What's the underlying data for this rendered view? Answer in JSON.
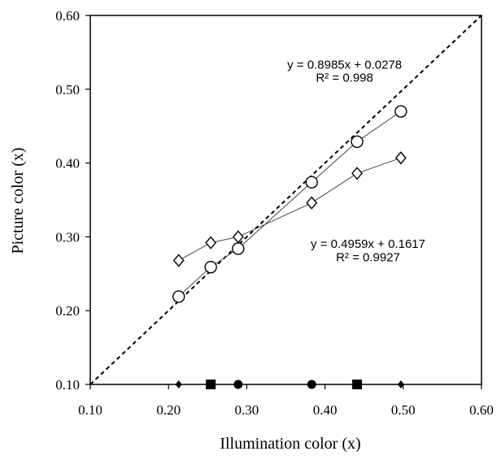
{
  "chart_data": {
    "type": "scatter",
    "title": "",
    "xlabel": "Illumination color (x)",
    "ylabel": "Picture color (x)",
    "xlim": [
      0.1,
      0.6
    ],
    "ylim": [
      0.1,
      0.6
    ],
    "x_ticks": [
      "0.10",
      "0.20",
      "0.30",
      "0.40",
      "0.50",
      "0.60"
    ],
    "y_ticks": [
      "0.10",
      "0.20",
      "0.30",
      "0.40",
      "0.50",
      "0.60"
    ],
    "grid": false,
    "legend": "none",
    "series": [
      {
        "marker": "circle-open",
        "color": "#000000",
        "x": [
          0.213,
          0.254,
          0.289,
          0.383,
          0.441,
          0.497
        ],
        "y": [
          0.219,
          0.259,
          0.284,
          0.374,
          0.429,
          0.47
        ],
        "trendline": {
          "slope": 0.8985,
          "intercept": 0.0278
        }
      },
      {
        "marker": "diamond-open",
        "color": "#000000",
        "x": [
          0.213,
          0.254,
          0.289,
          0.383,
          0.441,
          0.497
        ],
        "y": [
          0.268,
          0.292,
          0.3,
          0.346,
          0.386,
          0.407
        ],
        "trendline": {
          "slope": 0.4959,
          "intercept": 0.1617
        }
      },
      {
        "marker": "diamond-filled",
        "color": "#000000",
        "x": [
          0.213,
          0.497
        ],
        "y": [
          0.1,
          0.1
        ]
      },
      {
        "marker": "square-filled",
        "color": "#000000",
        "x": [
          0.254,
          0.441
        ],
        "y": [
          0.1,
          0.1
        ]
      },
      {
        "marker": "circle-filled",
        "color": "#000000",
        "x": [
          0.289,
          0.383
        ],
        "y": [
          0.1,
          0.1
        ]
      }
    ],
    "reference_line": {
      "style": "dashed",
      "from": [
        0.1,
        0.1
      ],
      "to": [
        0.6,
        0.6
      ]
    },
    "annotations": [
      {
        "text": "y = 0.8985x + 0.0278",
        "x": 0.425,
        "y": 0.528
      },
      {
        "text": "R² = 0.998",
        "x": 0.425,
        "y": 0.51
      },
      {
        "text": "y = 0.4959x + 0.1617",
        "x": 0.455,
        "y": 0.285
      },
      {
        "text": "R² = 0.9927",
        "x": 0.455,
        "y": 0.267
      }
    ]
  }
}
